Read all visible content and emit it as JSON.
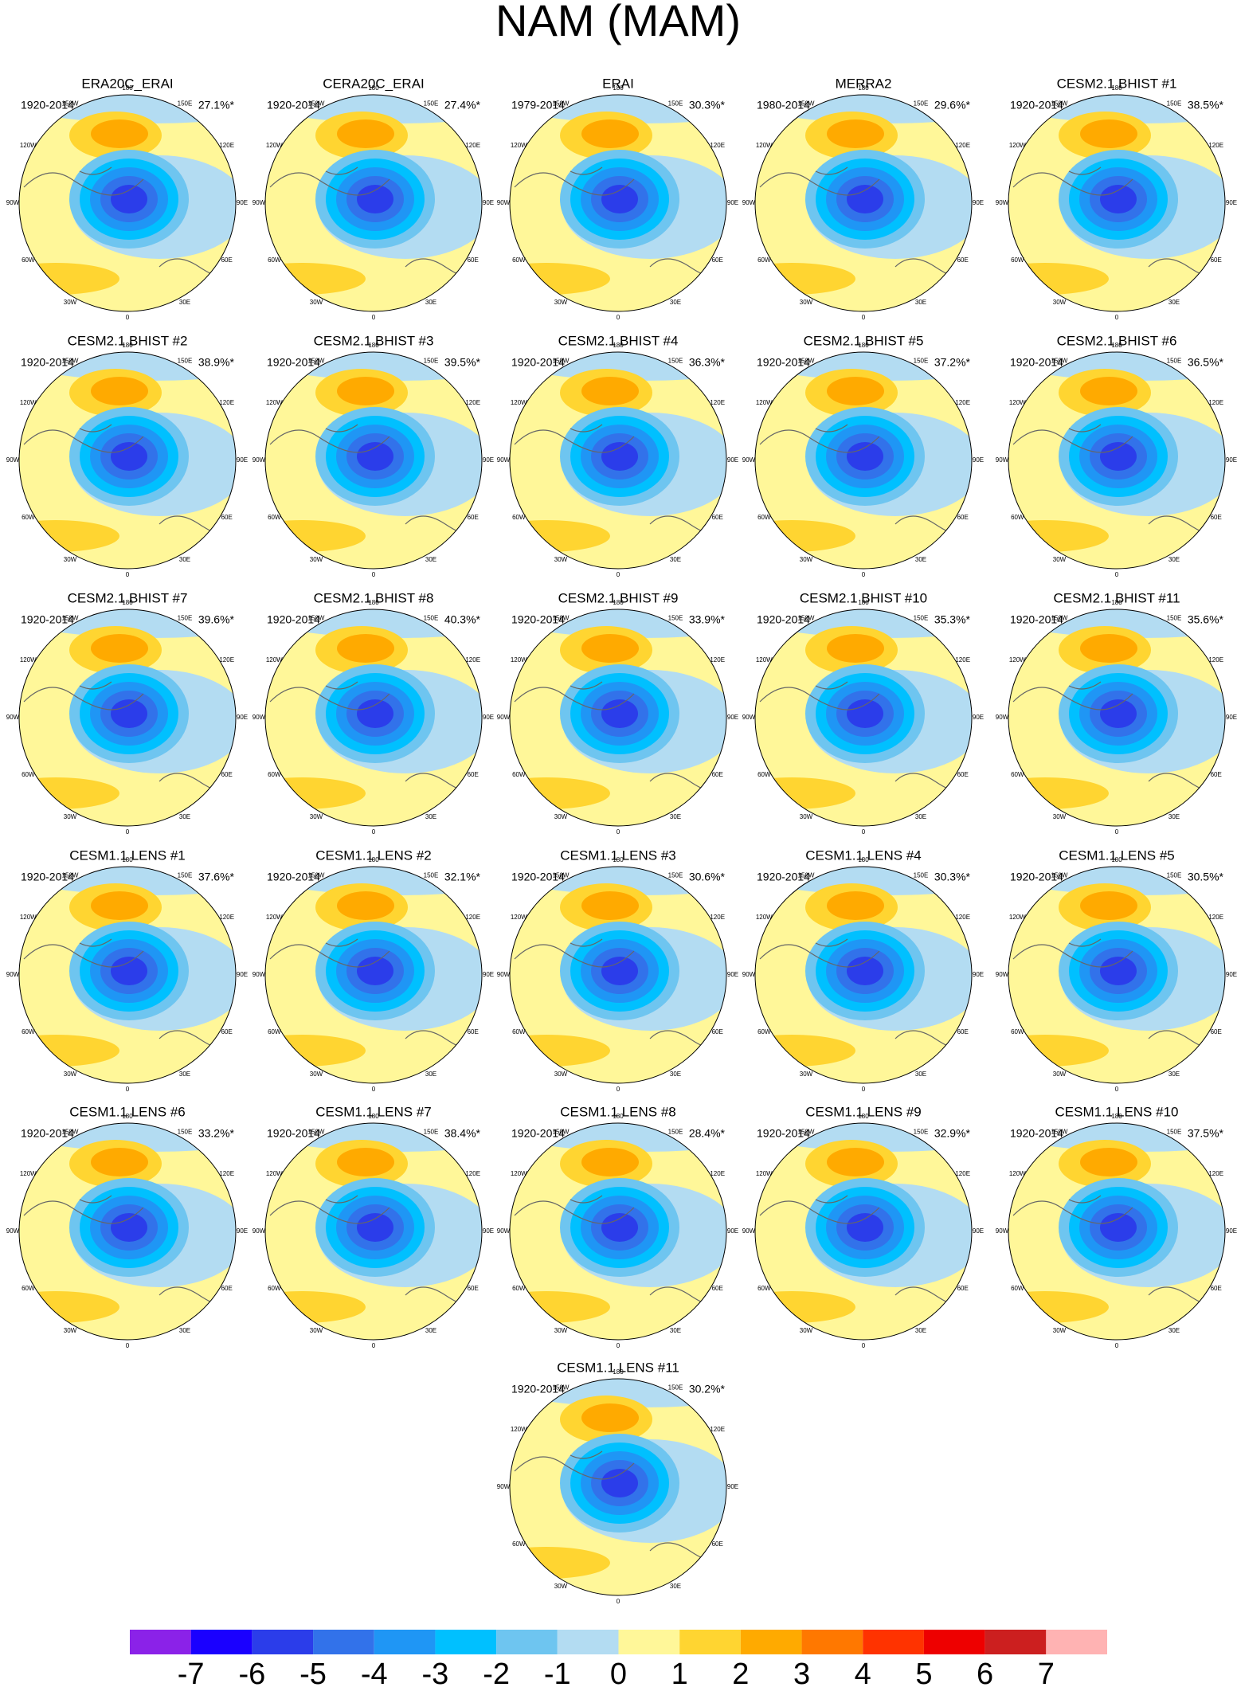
{
  "title": "NAM (MAM)",
  "panels": [
    {
      "title": "ERA20C_ERAI",
      "period": "1920-2014",
      "variance": "27.1%*"
    },
    {
      "title": "CERA20C_ERAI",
      "period": "1920-2014",
      "variance": "27.4%*"
    },
    {
      "title": "ERAI",
      "period": "1979-2014",
      "variance": "30.3%*"
    },
    {
      "title": "MERRA2",
      "period": "1980-2014",
      "variance": "29.6%*"
    },
    {
      "title": "CESM2.1 BHIST #1",
      "period": "1920-2014",
      "variance": "38.5%*"
    },
    {
      "title": "CESM2.1 BHIST #2",
      "period": "1920-2014",
      "variance": "38.9%*"
    },
    {
      "title": "CESM2.1 BHIST #3",
      "period": "1920-2014",
      "variance": "39.5%*"
    },
    {
      "title": "CESM2.1 BHIST #4",
      "period": "1920-2014",
      "variance": "36.3%*"
    },
    {
      "title": "CESM2.1 BHIST #5",
      "period": "1920-2014",
      "variance": "37.2%*"
    },
    {
      "title": "CESM2.1 BHIST #6",
      "period": "1920-2014",
      "variance": "36.5%*"
    },
    {
      "title": "CESM2.1 BHIST #7",
      "period": "1920-2014",
      "variance": "39.6%*"
    },
    {
      "title": "CESM2.1 BHIST #8",
      "period": "1920-2014",
      "variance": "40.3%*"
    },
    {
      "title": "CESM2.1 BHIST #9",
      "period": "1920-2014",
      "variance": "33.9%*"
    },
    {
      "title": "CESM2.1 BHIST #10",
      "period": "1920-2014",
      "variance": "35.3%*"
    },
    {
      "title": "CESM2.1 BHIST #11",
      "period": "1920-2014",
      "variance": "35.6%*"
    },
    {
      "title": "CESM1.1 LENS #1",
      "period": "1920-2014",
      "variance": "37.6%*"
    },
    {
      "title": "CESM1.1 LENS #2",
      "period": "1920-2014",
      "variance": "32.1%*"
    },
    {
      "title": "CESM1.1 LENS #3",
      "period": "1920-2014",
      "variance": "30.6%*"
    },
    {
      "title": "CESM1.1 LENS #4",
      "period": "1920-2014",
      "variance": "30.3%*"
    },
    {
      "title": "CESM1.1 LENS #5",
      "period": "1920-2014",
      "variance": "30.5%*"
    },
    {
      "title": "CESM1.1 LENS #6",
      "period": "1920-2014",
      "variance": "33.2%*"
    },
    {
      "title": "CESM1.1 LENS #7",
      "period": "1920-2014",
      "variance": "38.4%*"
    },
    {
      "title": "CESM1.1 LENS #8",
      "period": "1920-2014",
      "variance": "28.4%*"
    },
    {
      "title": "CESM1.1 LENS #9",
      "period": "1920-2014",
      "variance": "32.9%*"
    },
    {
      "title": "CESM1.1 LENS #10",
      "period": "1920-2014",
      "variance": "37.5%*"
    },
    {
      "title": "CESM1.1 LENS #11",
      "period": "1920-2014",
      "variance": "30.2%*"
    }
  ],
  "lon_labels": [
    "180",
    "150W",
    "150E",
    "120W",
    "120E",
    "90W",
    "90E",
    "60W",
    "60E",
    "30W",
    "30E",
    "0"
  ],
  "colorbar": {
    "colors": [
      "#8b22e8",
      "#1a00ff",
      "#2b3dea",
      "#3272ea",
      "#1f96f5",
      "#00c0ff",
      "#6ec5f0",
      "#b3dcf2",
      "#fff799",
      "#ffd531",
      "#ffaa00",
      "#ff7800",
      "#ff3300",
      "#ee0000",
      "#cc1f1f",
      "#ffb3b3"
    ],
    "labels": [
      -7,
      -6,
      -5,
      -4,
      -3,
      -2,
      -1,
      0,
      1,
      2,
      3,
      4,
      5,
      6,
      7
    ]
  }
}
